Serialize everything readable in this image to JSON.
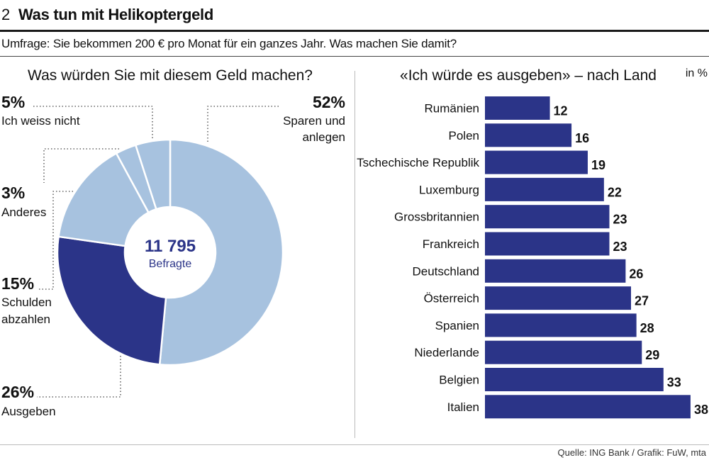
{
  "header": {
    "number": "2",
    "title": "Was tun mit Helikoptergeld"
  },
  "subtitle": "Umfrage: Sie bekommen 200 € pro Monat für ein ganzes Jahr. Was machen Sie damit?",
  "source": "Quelle: ING Bank / Grafik: FuW, mta",
  "colors": {
    "dark": "#2b3488",
    "light": "#a7c2df",
    "center_text": "#2b3488"
  },
  "chart_data": [
    {
      "type": "pie",
      "title": "Was würden Sie mit diesem Geld machen?",
      "center_value": "11 795",
      "center_label": "Befragte",
      "slices": [
        {
          "pct_label": "52%",
          "value": 52,
          "label": "Sparen und anlegen",
          "label_lines": [
            "Sparen und",
            "anlegen"
          ],
          "color": "light"
        },
        {
          "pct_label": "26%",
          "value": 26,
          "label": "Ausgeben",
          "label_lines": [
            "Ausgeben"
          ],
          "color": "dark"
        },
        {
          "pct_label": "15%",
          "value": 15,
          "label": "Schulden abzahlen",
          "label_lines": [
            "Schulden",
            "abzahlen"
          ],
          "color": "light"
        },
        {
          "pct_label": "3%",
          "value": 3,
          "label": "Anderes",
          "label_lines": [
            "Anderes"
          ],
          "color": "light"
        },
        {
          "pct_label": "5%",
          "value": 5,
          "label": "Ich weiss nicht",
          "label_lines": [
            "Ich weiss nicht"
          ],
          "color": "light"
        }
      ]
    },
    {
      "type": "bar",
      "orientation": "horizontal",
      "title": "«Ich würde es ausgeben» – nach Land",
      "unit_label": "in %",
      "categories": [
        "Rumänien",
        "Polen",
        "Tschechische Republik",
        "Luxemburg",
        "Grossbritannien",
        "Frankreich",
        "Deutschland",
        "Österreich",
        "Spanien",
        "Niederlande",
        "Belgien",
        "Italien"
      ],
      "values": [
        12,
        16,
        19,
        22,
        23,
        23,
        26,
        27,
        28,
        29,
        33,
        38
      ]
    }
  ]
}
